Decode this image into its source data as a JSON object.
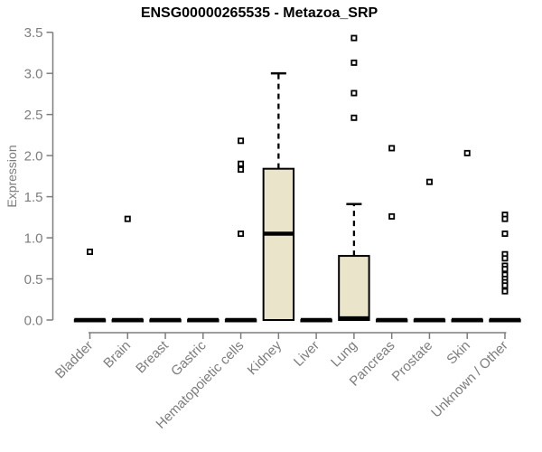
{
  "title": "ENSG00000265535 - Metazoa_SRP",
  "colors": {
    "box_fill": "#EAE4CB",
    "box_stroke": "#000000",
    "axis": "#7d7d7d",
    "tick_label": "#7d7d7d",
    "title": "#000000",
    "background": "#ffffff"
  },
  "chart_data": {
    "type": "boxplot",
    "title": "ENSG00000265535 - Metazoa_SRP",
    "xlabel": "",
    "ylabel": "Expression",
    "ylim": [
      0.0,
      3.5
    ],
    "yticks": [
      "0.0",
      "0.5",
      "1.0",
      "1.5",
      "2.0",
      "2.5",
      "3.0",
      "3.5"
    ],
    "grid": false,
    "legend": null,
    "categories": [
      "Bladder",
      "Brain",
      "Breast",
      "Gastric",
      "Hematopoietic cells",
      "Kidney",
      "Liver",
      "Lung",
      "Pancreas",
      "Prostate",
      "Skin",
      "Unknown / Other"
    ],
    "boxes": [
      {
        "category": "Bladder",
        "q1": 0,
        "median": 0,
        "q3": 0,
        "whisker_low": 0,
        "whisker_high": 0,
        "outliers": [
          0.83
        ]
      },
      {
        "category": "Brain",
        "q1": 0,
        "median": 0,
        "q3": 0,
        "whisker_low": 0,
        "whisker_high": 0,
        "outliers": [
          1.23
        ]
      },
      {
        "category": "Breast",
        "q1": 0,
        "median": 0,
        "q3": 0,
        "whisker_low": 0,
        "whisker_high": 0,
        "outliers": []
      },
      {
        "category": "Gastric",
        "q1": 0,
        "median": 0,
        "q3": 0,
        "whisker_low": 0,
        "whisker_high": 0,
        "outliers": []
      },
      {
        "category": "Hematopoietic cells",
        "q1": 0,
        "median": 0,
        "q3": 0,
        "whisker_low": 0,
        "whisker_high": 0,
        "outliers": [
          2.18,
          1.9,
          1.83,
          1.05
        ]
      },
      {
        "category": "Kidney",
        "q1": 0,
        "median": 1.05,
        "q3": 1.84,
        "whisker_low": 0,
        "whisker_high": 3.0,
        "outliers": []
      },
      {
        "category": "Liver",
        "q1": 0,
        "median": 0,
        "q3": 0,
        "whisker_low": 0,
        "whisker_high": 0,
        "outliers": []
      },
      {
        "category": "Lung",
        "q1": 0,
        "median": 0.02,
        "q3": 0.78,
        "whisker_low": 0,
        "whisker_high": 1.41,
        "outliers": [
          3.43,
          3.13,
          2.76,
          2.46
        ]
      },
      {
        "category": "Pancreas",
        "q1": 0,
        "median": 0,
        "q3": 0,
        "whisker_low": 0,
        "whisker_high": 0,
        "outliers": [
          2.09,
          1.26
        ]
      },
      {
        "category": "Prostate",
        "q1": 0,
        "median": 0,
        "q3": 0,
        "whisker_low": 0,
        "whisker_high": 0,
        "outliers": [
          1.68
        ]
      },
      {
        "category": "Skin",
        "q1": 0,
        "median": 0,
        "q3": 0,
        "whisker_low": 0,
        "whisker_high": 0,
        "outliers": [
          2.03
        ]
      },
      {
        "category": "Unknown / Other",
        "q1": 0,
        "median": 0,
        "q3": 0,
        "whisker_low": 0,
        "whisker_high": 0,
        "outliers": [
          1.28,
          1.23,
          1.05,
          0.8,
          0.75,
          0.66,
          0.62,
          0.55,
          0.5,
          0.46,
          0.42,
          0.35
        ]
      }
    ]
  }
}
